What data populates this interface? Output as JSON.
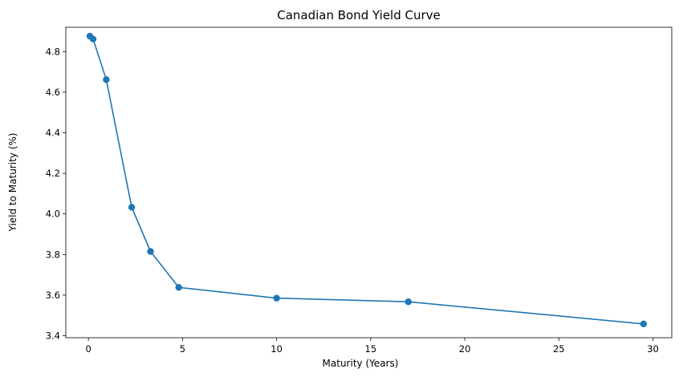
{
  "chart_data": {
    "type": "line",
    "title": "Canadian Bond Yield Curve",
    "xlabel": "Maturity (Years)",
    "ylabel": "Yield to Maturity (%)",
    "xlim": [
      -1.2,
      31.0
    ],
    "ylim": [
      3.39,
      4.92
    ],
    "xticks": [
      0,
      5,
      10,
      15,
      20,
      25,
      30
    ],
    "yticks": [
      3.4,
      3.6,
      3.8,
      4.0,
      4.2,
      4.4,
      4.6,
      4.8
    ],
    "ytick_labels": [
      "3.4",
      "3.6",
      "3.8",
      "4.0",
      "4.2",
      "4.4",
      "4.6",
      "4.8"
    ],
    "grid": false,
    "series": [
      {
        "color": "#1f77b4",
        "marker": "circle",
        "x": [
          0.08,
          0.25,
          0.95,
          2.3,
          3.3,
          4.8,
          10.0,
          17.0,
          29.5
        ],
        "y": [
          4.876,
          4.862,
          4.662,
          4.033,
          3.815,
          3.638,
          3.585,
          3.567,
          3.458
        ]
      }
    ]
  }
}
